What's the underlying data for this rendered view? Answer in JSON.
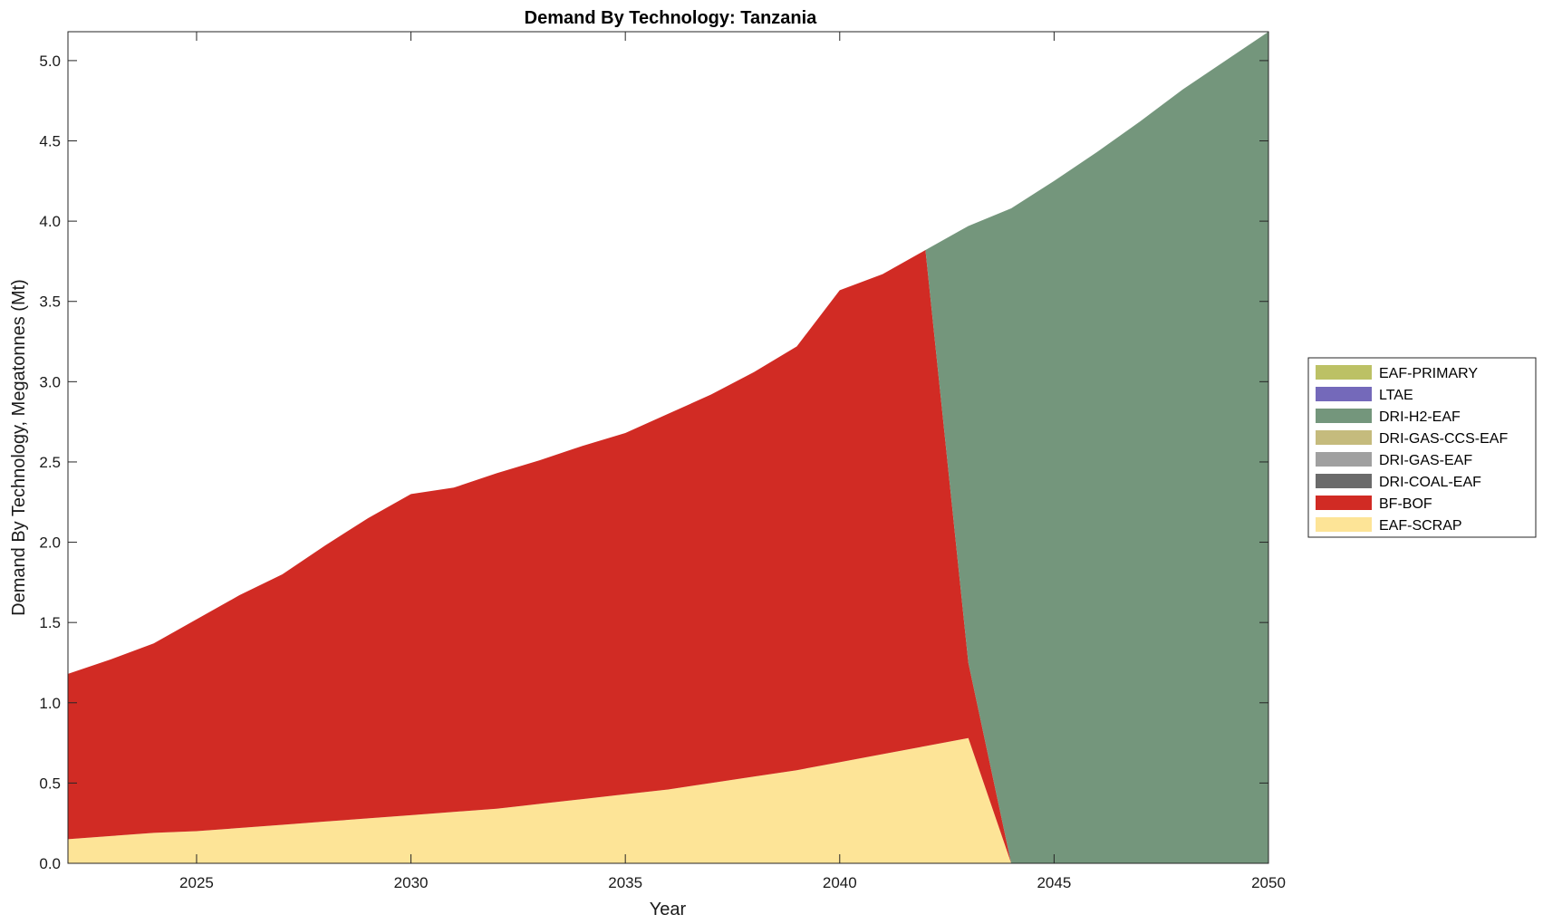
{
  "chart_data": {
    "type": "area",
    "stacked": true,
    "title": "Demand By Technology: Tanzania",
    "xlabel": "Year",
    "ylabel": "Demand By Technology, Megatonnes (Mt)",
    "xlim": [
      2022,
      2050
    ],
    "ylim": [
      0,
      5.18
    ],
    "xticks": [
      2025,
      2030,
      2035,
      2040,
      2045,
      2050
    ],
    "xtick_labels": [
      "2025",
      "2030",
      "2035",
      "2040",
      "2045",
      "2050"
    ],
    "yticks": [
      0,
      0.5,
      1.0,
      1.5,
      2.0,
      2.5,
      3.0,
      3.5,
      4.0,
      4.5,
      5.0
    ],
    "ytick_labels": [
      "0.0",
      "0.5",
      "1.0",
      "1.5",
      "2.0",
      "2.5",
      "3.0",
      "3.5",
      "4.0",
      "4.5",
      "5.0"
    ],
    "grid": false,
    "legend_position": "right",
    "x": [
      2022,
      2023,
      2024,
      2025,
      2026,
      2027,
      2028,
      2029,
      2030,
      2031,
      2032,
      2033,
      2034,
      2035,
      2036,
      2037,
      2038,
      2039,
      2040,
      2041,
      2042,
      2043,
      2044,
      2045,
      2046,
      2047,
      2048,
      2049,
      2050
    ],
    "series": [
      {
        "name": "EAF-SCRAP",
        "color": "#fde497",
        "values": [
          0.15,
          0.17,
          0.19,
          0.2,
          0.22,
          0.24,
          0.26,
          0.28,
          0.3,
          0.32,
          0.34,
          0.37,
          0.4,
          0.43,
          0.46,
          0.5,
          0.54,
          0.58,
          0.63,
          0.68,
          0.73,
          0.78,
          0,
          0,
          0,
          0,
          0,
          0,
          0
        ]
      },
      {
        "name": "BF-BOF",
        "color": "#d12b24",
        "values": [
          1.03,
          1.1,
          1.18,
          1.32,
          1.45,
          1.56,
          1.72,
          1.87,
          2.0,
          2.02,
          2.09,
          2.14,
          2.2,
          2.25,
          2.34,
          2.42,
          2.52,
          2.64,
          2.94,
          2.99,
          3.09,
          0.47,
          0,
          0,
          0,
          0,
          0,
          0,
          0
        ]
      },
      {
        "name": "DRI-COAL-EAF",
        "color": "#6b6b6b",
        "values": [
          0,
          0,
          0,
          0,
          0,
          0,
          0,
          0,
          0,
          0,
          0,
          0,
          0,
          0,
          0,
          0,
          0,
          0,
          0,
          0,
          0,
          0,
          0,
          0,
          0,
          0,
          0,
          0,
          0
        ]
      },
      {
        "name": "DRI-GAS-EAF",
        "color": "#a0a0a0",
        "values": [
          0,
          0,
          0,
          0,
          0,
          0,
          0,
          0,
          0,
          0,
          0,
          0,
          0,
          0,
          0,
          0,
          0,
          0,
          0,
          0,
          0,
          0,
          0,
          0,
          0,
          0,
          0,
          0,
          0
        ]
      },
      {
        "name": "DRI-GAS-CCS-EAF",
        "color": "#c5bb7d",
        "values": [
          0,
          0,
          0,
          0,
          0,
          0,
          0,
          0,
          0,
          0,
          0,
          0,
          0,
          0,
          0,
          0,
          0,
          0,
          0,
          0,
          0,
          0,
          0,
          0,
          0,
          0,
          0,
          0,
          0
        ]
      },
      {
        "name": "DRI-H2-EAF",
        "color": "#74967c",
        "values": [
          0,
          0,
          0,
          0,
          0,
          0,
          0,
          0,
          0,
          0,
          0,
          0,
          0,
          0,
          0,
          0,
          0,
          0,
          0,
          0,
          0,
          2.72,
          4.08,
          4.25,
          4.43,
          4.62,
          4.82,
          5.0,
          5.18
        ]
      },
      {
        "name": "LTAE",
        "color": "#7469ba",
        "values": [
          0,
          0,
          0,
          0,
          0,
          0,
          0,
          0,
          0,
          0,
          0,
          0,
          0,
          0,
          0,
          0,
          0,
          0,
          0,
          0,
          0,
          0,
          0,
          0,
          0,
          0,
          0,
          0,
          0
        ]
      },
      {
        "name": "EAF-PRIMARY",
        "color": "#bcc165",
        "values": [
          0,
          0,
          0,
          0,
          0,
          0,
          0,
          0,
          0,
          0,
          0,
          0,
          0,
          0,
          0,
          0,
          0,
          0,
          0,
          0,
          0,
          0,
          0,
          0,
          0,
          0,
          0,
          0,
          0
        ]
      }
    ],
    "legend_order": [
      "EAF-PRIMARY",
      "LTAE",
      "DRI-H2-EAF",
      "DRI-GAS-CCS-EAF",
      "DRI-GAS-EAF",
      "DRI-COAL-EAF",
      "BF-BOF",
      "EAF-SCRAP"
    ]
  }
}
